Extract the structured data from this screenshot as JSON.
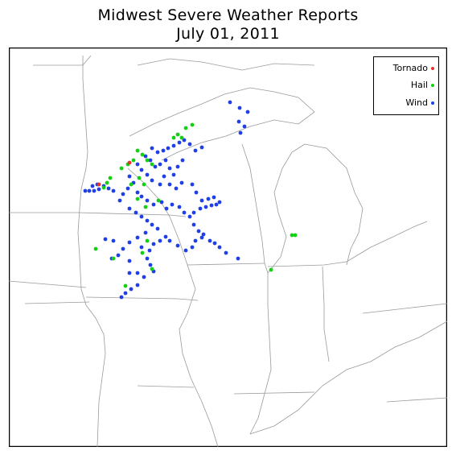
{
  "header": {
    "title": "Midwest Severe Weather Reports",
    "date": "July 01, 2011"
  },
  "legend": {
    "items": [
      {
        "label": "Tornado",
        "color": "#e8322e"
      },
      {
        "label": "Hail",
        "color": "#12d012"
      },
      {
        "label": "Wind",
        "color": "#1f3fe8"
      }
    ]
  }
}
